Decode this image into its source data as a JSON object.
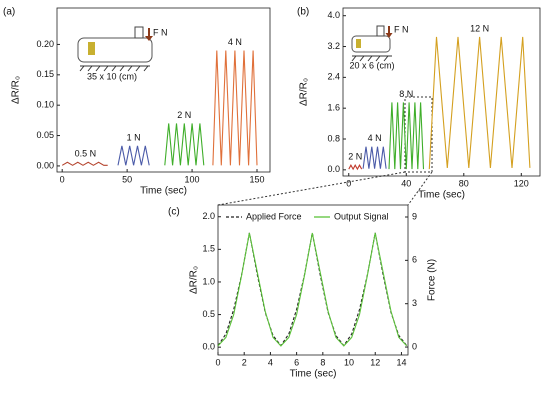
{
  "chart_data": [
    {
      "type": "line",
      "panel_label": "(a)",
      "xlabel": "Time (sec)",
      "ylabel": "ΔR/R₀",
      "xlim": [
        -4,
        160
      ],
      "xticks": [
        0,
        50,
        100,
        150
      ],
      "ylim": [
        -0.01,
        0.26
      ],
      "yticks": [
        {
          "value": 0,
          "label": "0.00"
        },
        {
          "value": 0.05,
          "label": "0.05"
        },
        {
          "value": 0.1,
          "label": "0.10"
        },
        {
          "value": 0.15,
          "label": "0.15"
        },
        {
          "value": 0.2,
          "label": "0.20"
        }
      ],
      "inset_force": "F N",
      "inset_size": "35 x 10 (cm)",
      "series": [
        {
          "name": "0.5 N",
          "color": "#b5452f",
          "x": [
            0,
            4,
            8,
            12,
            16,
            20,
            24,
            28,
            32,
            35
          ],
          "values": [
            0.001,
            0.006,
            0.001,
            0.006,
            0.001,
            0.006,
            0.001,
            0.006,
            0.001,
            0.001
          ]
        },
        {
          "name": "1 N",
          "color": "#4a5aa8",
          "x": [
            43,
            46,
            49,
            52,
            55,
            58,
            61,
            64,
            67
          ],
          "values": [
            0.001,
            0.033,
            0.001,
            0.033,
            0.001,
            0.033,
            0.001,
            0.033,
            0.001
          ]
        },
        {
          "name": "2 N",
          "color": "#3fae2a",
          "x": [
            79,
            82,
            85,
            88,
            91,
            94,
            97,
            100,
            103,
            106,
            109
          ],
          "values": [
            0.001,
            0.07,
            0.001,
            0.07,
            0.001,
            0.07,
            0.001,
            0.07,
            0.001,
            0.07,
            0.001
          ]
        },
        {
          "name": "4 N",
          "color": "#e0703a",
          "x": [
            116,
            119,
            122.5,
            126,
            129.5,
            133,
            136.5,
            140,
            143.5,
            147,
            150
          ],
          "values": [
            0.001,
            0.19,
            0.001,
            0.19,
            0.001,
            0.19,
            0.001,
            0.19,
            0.001,
            0.19,
            0.001
          ]
        }
      ]
    },
    {
      "type": "line",
      "panel_label": "(b)",
      "xlabel": "Time (sec)",
      "ylabel": "ΔR/R₀",
      "xlim": [
        -4,
        133
      ],
      "xticks": [
        0,
        40,
        80,
        120
      ],
      "ylim": [
        -0.16,
        4.2
      ],
      "yticks": [
        {
          "value": 0,
          "label": "0.0"
        },
        0.8,
        1.6,
        2.4,
        3.2,
        {
          "value": 4,
          "label": "4.0"
        }
      ],
      "inset_force": "F N",
      "inset_size": "20 x 6 (cm)",
      "series": [
        {
          "name": "2 N",
          "color": "#c0392b",
          "x": [
            0,
            1.5,
            3,
            4.5,
            6,
            7.5,
            9
          ],
          "values": [
            0.02,
            0.12,
            0.02,
            0.12,
            0.02,
            0.12,
            0.02
          ]
        },
        {
          "name": "4 N",
          "color": "#4a5aa8",
          "x": [
            10,
            12,
            14,
            16,
            18,
            20,
            22,
            24,
            26
          ],
          "values": [
            0.03,
            0.6,
            0.03,
            0.6,
            0.03,
            0.6,
            0.03,
            0.6,
            0.03
          ]
        },
        {
          "name": "8 N",
          "color": "#3fae2a",
          "x": [
            28,
            30,
            32,
            34,
            36,
            38,
            40,
            42,
            44,
            46,
            48,
            50,
            52
          ],
          "values": [
            0.02,
            1.75,
            0.02,
            1.75,
            0.02,
            1.75,
            0.02,
            1.75,
            0.02,
            1.75,
            0.02,
            1.75,
            0.02
          ]
        },
        {
          "name": "12 N",
          "color": "#d4a020",
          "x": [
            56,
            61,
            68.5,
            76,
            83.5,
            91,
            98.5,
            106,
            113.5,
            121,
            126
          ],
          "values": [
            0.02,
            3.45,
            0.05,
            3.45,
            0.05,
            3.45,
            0.05,
            3.45,
            0.05,
            3.45,
            0.05
          ]
        }
      ]
    },
    {
      "type": "line",
      "panel_label": "(c)",
      "xlabel": "Time (sec)",
      "ylabel": "ΔR/R₀",
      "y2label": "Force (N)",
      "xlim": [
        0,
        14.5
      ],
      "xticks": [
        0,
        2,
        4,
        6,
        8,
        10,
        12,
        14
      ],
      "ylim": [
        -0.12,
        2.18
      ],
      "yticks": [
        {
          "value": 0,
          "label": "0.0"
        },
        0.5,
        {
          "value": 1,
          "label": "1.0"
        },
        1.5,
        {
          "value": 2,
          "label": "2.0"
        }
      ],
      "y2lim": [
        -0.55,
        9.83
      ],
      "y2ticks": [
        0,
        3,
        6,
        9
      ],
      "legend": "upper center",
      "x": [
        0,
        0.6,
        1.2,
        1.8,
        2.4,
        3.0,
        3.6,
        4.2,
        4.8,
        5.4,
        6.0,
        6.6,
        7.2,
        7.8,
        8.4,
        9.0,
        9.6,
        10.2,
        10.8,
        11.4,
        12.0,
        12.6,
        13.2,
        13.8,
        14.4
      ],
      "series": [
        {
          "name": "Applied Force",
          "color": "#222222",
          "style": "dashed",
          "axis": "y2",
          "values": [
            0.1,
            0.9,
            2.6,
            5.0,
            7.9,
            5.0,
            2.4,
            0.8,
            0.1,
            0.9,
            2.6,
            5.0,
            7.9,
            5.0,
            2.4,
            0.8,
            0.1,
            0.9,
            2.6,
            5.0,
            7.9,
            5.0,
            2.4,
            0.8,
            0.1
          ]
        },
        {
          "name": "Output Signal",
          "color": "#5cc23a",
          "style": "solid",
          "values": [
            0.02,
            0.15,
            0.5,
            1.1,
            1.75,
            1.15,
            0.55,
            0.15,
            0.02,
            0.15,
            0.5,
            1.1,
            1.75,
            1.15,
            0.55,
            0.15,
            0.02,
            0.15,
            0.5,
            1.1,
            1.75,
            1.15,
            0.55,
            0.15,
            0.02
          ]
        }
      ]
    }
  ]
}
